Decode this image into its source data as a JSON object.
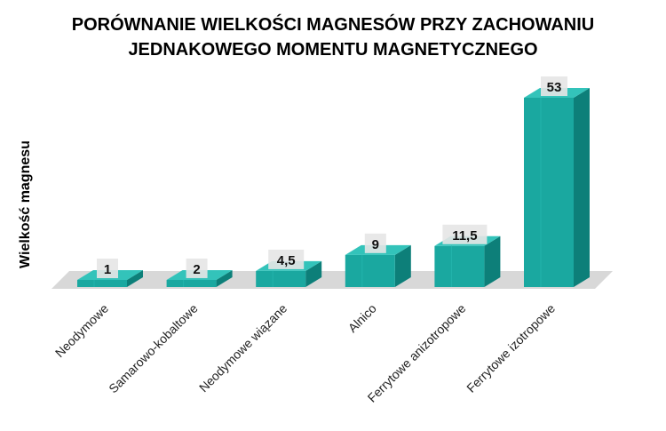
{
  "chart_data": {
    "type": "bar",
    "title_lines": [
      "PORÓWNANIE WIELKOŚCI MAGNESÓW PRZY ZACHOWANIU",
      "JEDNAKOWEGO MOMENTU MAGNETYCZNEGO"
    ],
    "ylabel": "Wielkość magnesu",
    "xlabel": "",
    "categories": [
      "Neodymowe",
      "Samarowo-kobaltowe",
      "Neodymowe wiązane",
      "Alnico",
      "Ferrytowe anizotropowe",
      "Ferrytowe izotropowe"
    ],
    "values": [
      1,
      2,
      4.5,
      9,
      11.5,
      53
    ],
    "data_labels": [
      "1",
      "2",
      "4,5",
      "9",
      "11,5",
      "53"
    ],
    "ylim": [
      0,
      53
    ],
    "grid": false,
    "style": "3d-column",
    "colors": {
      "front": "#1aa8a0",
      "side": "#0d7f79",
      "top": "#33c3ba",
      "floor": "#d8d8d8",
      "label_box": "#e6e6e6"
    }
  }
}
